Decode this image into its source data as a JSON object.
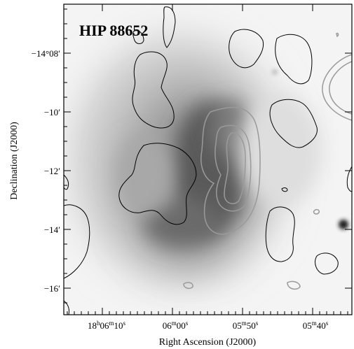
{
  "figure": {
    "title": "HIP 88652",
    "x_axis": {
      "label": "Right Ascension (J2000)",
      "ticks": [
        {
          "h": "18",
          "h_unit": "h",
          "m": "06",
          "m_unit": "m",
          "s": "10",
          "s_unit": "s"
        },
        {
          "h": "",
          "h_unit": "",
          "m": "06",
          "m_unit": "m",
          "s": "00",
          "s_unit": "s"
        },
        {
          "h": "",
          "h_unit": "",
          "m": "05",
          "m_unit": "m",
          "s": "50",
          "s_unit": "s"
        },
        {
          "h": "",
          "h_unit": "",
          "m": "05",
          "m_unit": "m",
          "s": "40",
          "s_unit": "s"
        }
      ]
    },
    "y_axis": {
      "label": "Declination (J2000)",
      "ticks": [
        "−14°08′",
        "−10′",
        "−12′",
        "−14′",
        "−16′"
      ]
    },
    "colors": {
      "background": "#ffffff",
      "nebula_dark": "#3a3a3a",
      "contour_black": "#000000",
      "contour_gray": "#9a9a9a",
      "frame": "#000000"
    }
  }
}
